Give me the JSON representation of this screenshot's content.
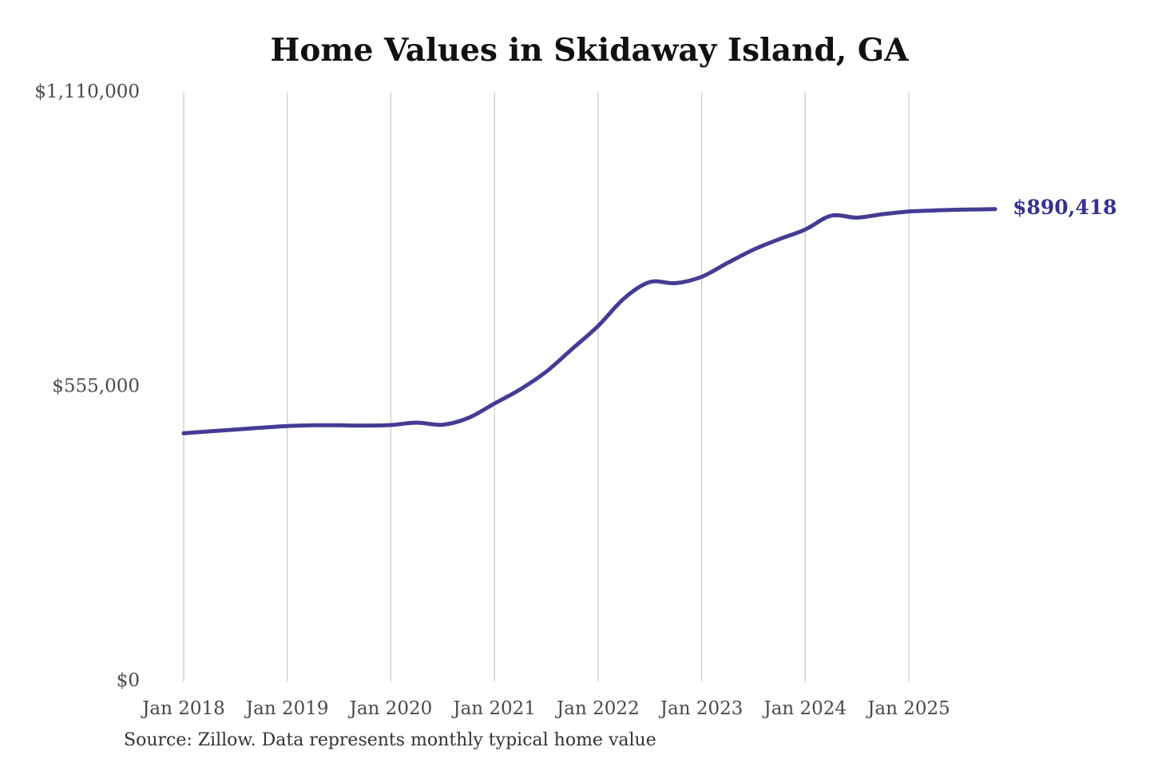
{
  "page": {
    "title": "Home Values in Skidaway Island, GA",
    "source_note": "Source: Zillow. Data represents monthly typical home value"
  },
  "chart_data": {
    "type": "line",
    "title": "Home Values in Skidaway Island, GA",
    "unit": "USD",
    "grid": "vertical-only",
    "legend": "none",
    "end_label": "$890,418",
    "latest_value": 890418,
    "x_axis": {
      "tick_labels": [
        "Jan 2018",
        "Jan 2019",
        "Jan 2020",
        "Jan 2021",
        "Jan 2022",
        "Jan 2023",
        "Jan 2024",
        "Jan 2025"
      ]
    },
    "y_axis": {
      "range": [
        0,
        1110000
      ],
      "ticks": [
        {
          "label": "$1,110,000",
          "value": 1110000
        },
        {
          "label": "$555,000",
          "value": 555000
        },
        {
          "label": "$0",
          "value": 0
        }
      ]
    },
    "series": [
      {
        "name": "Monthly typical home value",
        "points": [
          {
            "date": "2018-01",
            "value": 468000
          },
          {
            "date": "2018-04",
            "value": 471500
          },
          {
            "date": "2018-07",
            "value": 475000
          },
          {
            "date": "2018-10",
            "value": 478500
          },
          {
            "date": "2019-01",
            "value": 481500
          },
          {
            "date": "2019-04",
            "value": 483000
          },
          {
            "date": "2019-07",
            "value": 483000
          },
          {
            "date": "2019-10",
            "value": 482500
          },
          {
            "date": "2020-01",
            "value": 483500
          },
          {
            "date": "2020-04",
            "value": 488000
          },
          {
            "date": "2020-07",
            "value": 484000
          },
          {
            "date": "2020-10",
            "value": 497000
          },
          {
            "date": "2021-01",
            "value": 524000
          },
          {
            "date": "2021-04",
            "value": 551000
          },
          {
            "date": "2021-07",
            "value": 584000
          },
          {
            "date": "2021-10",
            "value": 627000
          },
          {
            "date": "2022-01",
            "value": 670000
          },
          {
            "date": "2022-04",
            "value": 722000
          },
          {
            "date": "2022-07",
            "value": 753000
          },
          {
            "date": "2022-10",
            "value": 751000
          },
          {
            "date": "2023-01",
            "value": 763000
          },
          {
            "date": "2023-04",
            "value": 789000
          },
          {
            "date": "2023-07",
            "value": 814000
          },
          {
            "date": "2023-10",
            "value": 834000
          },
          {
            "date": "2024-01",
            "value": 852000
          },
          {
            "date": "2024-04",
            "value": 878000
          },
          {
            "date": "2024-07",
            "value": 874500
          },
          {
            "date": "2024-10",
            "value": 881000
          },
          {
            "date": "2025-01",
            "value": 886000
          },
          {
            "date": "2025-04",
            "value": 888000
          },
          {
            "date": "2025-07",
            "value": 889500
          },
          {
            "date": "2025-11",
            "value": 890418
          }
        ]
      }
    ],
    "colors": {
      "line": "#443c94",
      "end_label": "#38308f",
      "tick_text": "#4a4a4a",
      "grid": "#cccccc",
      "title_text": "#111111",
      "source_text": "#333333",
      "background": "#ffffff"
    }
  }
}
